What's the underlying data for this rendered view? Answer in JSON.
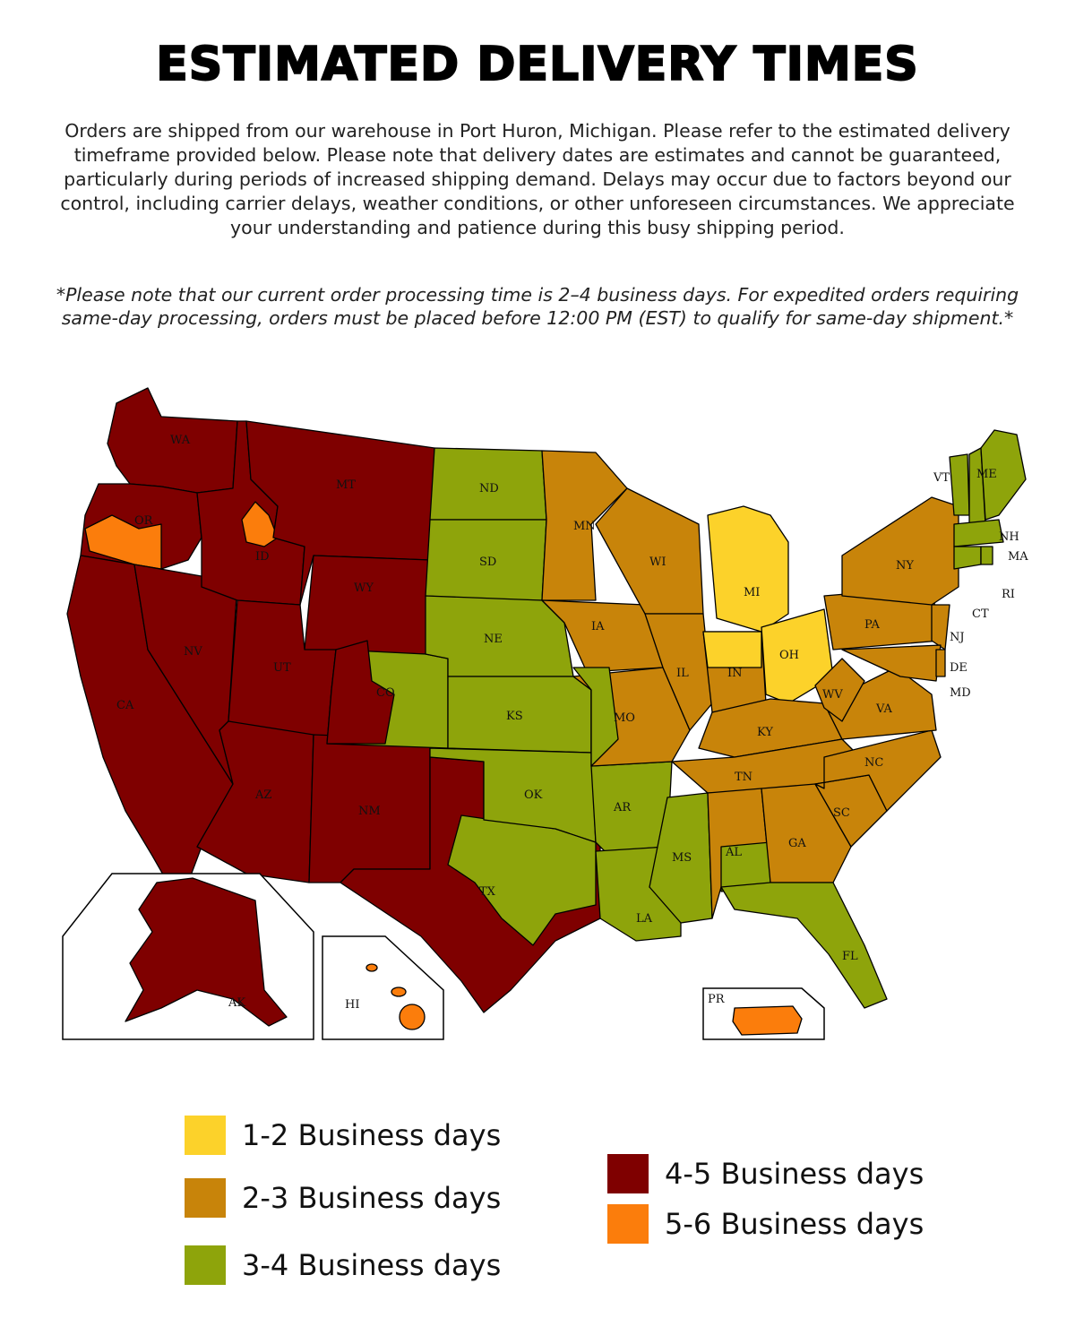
{
  "title": "ESTIMATED DELIVERY TIMES",
  "intro": "Orders are shipped from our warehouse in Port Huron, Michigan. Please refer to the estimated delivery timeframe provided below. Please note that delivery dates are estimates and cannot be guaranteed, particularly during periods of increased shipping demand. Delays may occur due to factors beyond our control, including carrier delays, weather conditions, or other unforeseen circumstances. We appreciate your understanding and patience during this busy shipping period.",
  "processing_note": "*Please note that our current order processing time is 2–4 business days. For expedited orders requiring same-day processing, orders must be placed before 12:00 PM (EST) to qualify for same-day shipment.*",
  "colors": {
    "yellow": "#fcd22a",
    "gold": "#c8840a",
    "green": "#8ea40b",
    "darkred": "#7f0000",
    "orange": "#fb7d0c"
  },
  "legend": [
    {
      "label": "1-2 Business days",
      "color": "#fcd22a"
    },
    {
      "label": "2-3 Business days",
      "color": "#c8840a"
    },
    {
      "label": "3-4 Business days",
      "color": "#8ea40b"
    },
    {
      "label": "4-5 Business days",
      "color": "#7f0000"
    },
    {
      "label": "5-6 Business days",
      "color": "#fb7d0c"
    }
  ],
  "state_labels": {
    "WA": "WA",
    "OR": "OR",
    "CA": "CA",
    "NV": "NV",
    "ID": "ID",
    "MT": "MT",
    "WY": "WY",
    "UT": "UT",
    "AZ": "AZ",
    "NM": "NM",
    "CO": "CO",
    "ND": "ND",
    "SD": "SD",
    "NE": "NE",
    "KS": "KS",
    "OK": "OK",
    "TX": "TX",
    "MN": "MN",
    "IA": "IA",
    "MO": "MO",
    "AR": "AR",
    "LA": "LA",
    "WI": "WI",
    "IL": "IL",
    "MI": "MI",
    "IN": "IN",
    "OH": "OH",
    "KY": "KY",
    "TN": "TN",
    "MS": "MS",
    "AL": "AL",
    "GA": "GA",
    "FL": "FL",
    "SC": "SC",
    "NC": "NC",
    "VA": "VA",
    "WV": "WV",
    "PA": "PA",
    "NY": "NY",
    "VT": "VT",
    "ME": "ME",
    "NH": "NH",
    "MA": "MA",
    "RI": "RI",
    "CT": "CT",
    "NJ": "NJ",
    "DE": "DE",
    "MD": "MD",
    "AK": "AK",
    "HI": "HI",
    "PR": "PR"
  }
}
